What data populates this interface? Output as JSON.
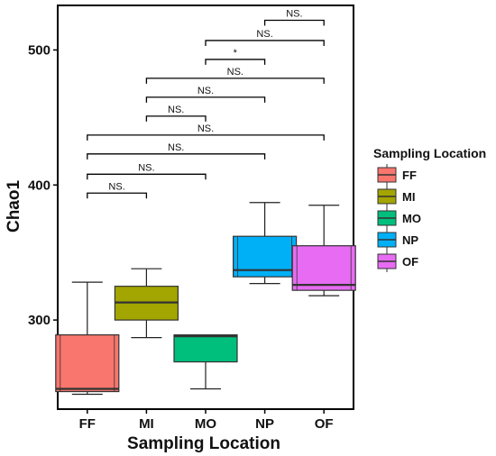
{
  "chart_data": {
    "type": "box",
    "xlabel": "Sampling Location",
    "ylabel": "Chao1",
    "ylim": [
      234,
      533
    ],
    "y_ticks": [
      300,
      400,
      500
    ],
    "grid": false,
    "legend": {
      "title": "Sampling Location",
      "position": "right"
    },
    "categories": [
      "FF",
      "MI",
      "MO",
      "NP",
      "OF"
    ],
    "series": [
      {
        "name": "FF",
        "color": "#F8766D",
        "min": 245,
        "q1": 247,
        "median": 249,
        "q3": 289,
        "max": 328,
        "outer_left": 247,
        "outer_right": 287
      },
      {
        "name": "MI",
        "color": "#A3A500",
        "min": 287,
        "q1": 300,
        "median": 313,
        "q3": 325,
        "max": 338
      },
      {
        "name": "MO",
        "color": "#00BF7D",
        "min": 249,
        "q1": 269,
        "median": 288,
        "q3": 289,
        "max": 289
      },
      {
        "name": "NP",
        "color": "#00B0F6",
        "min": 327,
        "q1": 332,
        "median": 337,
        "q3": 362,
        "max": 387,
        "outer_left": 332,
        "outer_right": 359
      },
      {
        "name": "OF",
        "color": "#E76BF3",
        "min": 318,
        "q1": 322,
        "median": 326,
        "q3": 355,
        "max": 385,
        "outer_left": 323,
        "outer_right": 353
      }
    ],
    "comparisons": [
      {
        "from": "FF",
        "to": "MI",
        "label": "NS.",
        "y": 394
      },
      {
        "from": "FF",
        "to": "MO",
        "label": "NS.",
        "y": 408
      },
      {
        "from": "FF",
        "to": "NP",
        "label": "NS.",
        "y": 423
      },
      {
        "from": "FF",
        "to": "OF",
        "label": "NS.",
        "y": 437
      },
      {
        "from": "MI",
        "to": "MO",
        "label": "NS.",
        "y": 451
      },
      {
        "from": "MI",
        "to": "NP",
        "label": "NS.",
        "y": 465
      },
      {
        "from": "MI",
        "to": "OF",
        "label": "NS.",
        "y": 479
      },
      {
        "from": "MO",
        "to": "NP",
        "label": "*",
        "y": 493
      },
      {
        "from": "MO",
        "to": "OF",
        "label": "NS.",
        "y": 507
      },
      {
        "from": "NP",
        "to": "OF",
        "label": "NS.",
        "y": 522
      }
    ]
  }
}
